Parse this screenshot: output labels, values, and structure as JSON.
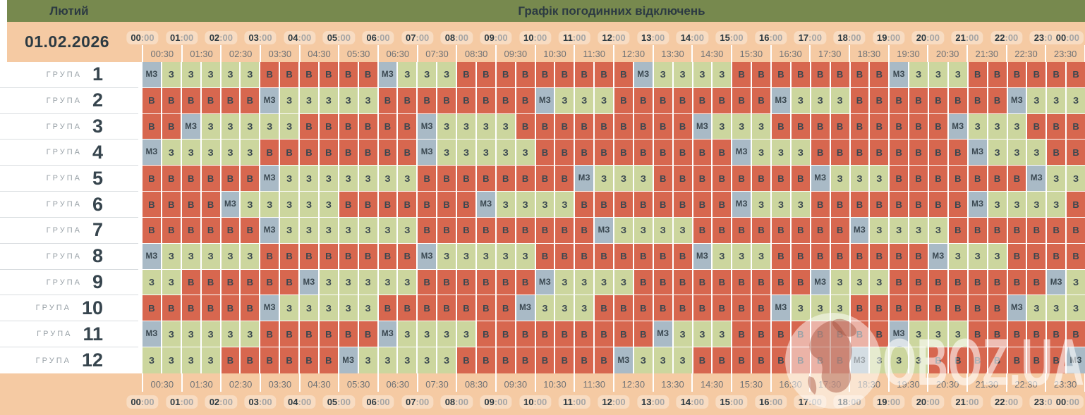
{
  "header": {
    "month": "Лютий",
    "title": "Графік погодинних відключень"
  },
  "sidebar": {
    "date": "01.02.2026",
    "group_label": "ГРУПА",
    "group_numbers": [
      "1",
      "2",
      "3",
      "4",
      "5",
      "6",
      "7",
      "8",
      "9",
      "10",
      "11",
      "12"
    ]
  },
  "time_axis": {
    "hours": [
      "00:00",
      "01:00",
      "02:00",
      "03:00",
      "04:00",
      "05:00",
      "06:00",
      "07:00",
      "08:00",
      "09:00",
      "10:00",
      "11:00",
      "12:00",
      "13:00",
      "14:00",
      "15:00",
      "16:00",
      "17:00",
      "18:00",
      "19:00",
      "20:00",
      "21:00",
      "22:00",
      "23:00",
      "00:00"
    ],
    "half_hours": [
      "00:30",
      "01:30",
      "02:30",
      "03:30",
      "04:30",
      "05:30",
      "06:30",
      "07:30",
      "08:30",
      "09:30",
      "10:30",
      "11:30",
      "12:30",
      "13:30",
      "14:30",
      "15:30",
      "16:30",
      "17:30",
      "18:30",
      "19:30",
      "20:30",
      "21:30",
      "22:30",
      "23:30"
    ]
  },
  "legend_colors": {
    "В": "#d7674f",
    "З": "#ccd69e",
    "МЗ": "#a9bac6"
  },
  "watermark": {
    "text": "OBOZ.UA"
  },
  "chart_data": {
    "type": "heatmap",
    "title": "Графік погодинних відключень",
    "month": "Лютий",
    "date": "01.02.2026",
    "x_slots": [
      "00:00",
      "00:30",
      "01:00",
      "01:30",
      "02:00",
      "02:30",
      "03:00",
      "03:30",
      "04:00",
      "04:30",
      "05:00",
      "05:30",
      "06:00",
      "06:30",
      "07:00",
      "07:30",
      "08:00",
      "08:30",
      "09:00",
      "09:30",
      "10:00",
      "10:30",
      "11:00",
      "11:30",
      "12:00",
      "12:30",
      "13:00",
      "13:30",
      "14:00",
      "14:30",
      "15:00",
      "15:30",
      "16:00",
      "16:30",
      "17:00",
      "17:30",
      "18:00",
      "18:30",
      "19:00",
      "19:30",
      "20:00",
      "20:30",
      "21:00",
      "21:30",
      "22:00",
      "22:30",
      "23:00",
      "23:30"
    ],
    "y_groups": [
      "1",
      "2",
      "3",
      "4",
      "5",
      "6",
      "7",
      "8",
      "9",
      "10",
      "11",
      "12"
    ],
    "cell_values": [
      "В",
      "З",
      "МЗ"
    ],
    "matrix": [
      [
        "МЗ",
        "З",
        "З",
        "З",
        "З",
        "З",
        "В",
        "В",
        "В",
        "В",
        "В",
        "В",
        "МЗ",
        "З",
        "З",
        "З",
        "В",
        "В",
        "В",
        "В",
        "В",
        "В",
        "В",
        "В",
        "В",
        "МЗ",
        "З",
        "З",
        "З",
        "З",
        "В",
        "В",
        "В",
        "В",
        "В",
        "В",
        "В",
        "В",
        "МЗ",
        "З",
        "З",
        "З",
        "В",
        "В",
        "В",
        "В",
        "В",
        "В"
      ],
      [
        "В",
        "В",
        "В",
        "В",
        "В",
        "В",
        "МЗ",
        "З",
        "З",
        "З",
        "З",
        "З",
        "В",
        "В",
        "В",
        "В",
        "В",
        "В",
        "В",
        "В",
        "МЗ",
        "З",
        "З",
        "З",
        "В",
        "В",
        "В",
        "В",
        "В",
        "В",
        "В",
        "В",
        "МЗ",
        "З",
        "З",
        "З",
        "В",
        "В",
        "В",
        "В",
        "В",
        "В",
        "В",
        "В",
        "МЗ",
        "З",
        "З",
        "З"
      ],
      [
        "В",
        "В",
        "МЗ",
        "З",
        "З",
        "З",
        "З",
        "З",
        "В",
        "В",
        "В",
        "В",
        "В",
        "В",
        "МЗ",
        "З",
        "З",
        "З",
        "З",
        "В",
        "В",
        "В",
        "В",
        "В",
        "В",
        "В",
        "В",
        "В",
        "МЗ",
        "З",
        "З",
        "З",
        "В",
        "В",
        "В",
        "В",
        "В",
        "В",
        "В",
        "В",
        "В",
        "МЗ",
        "З",
        "З",
        "З",
        "В",
        "В",
        "В"
      ],
      [
        "МЗ",
        "З",
        "З",
        "З",
        "З",
        "З",
        "В",
        "В",
        "В",
        "В",
        "В",
        "В",
        "В",
        "В",
        "МЗ",
        "З",
        "З",
        "З",
        "З",
        "З",
        "В",
        "В",
        "В",
        "В",
        "В",
        "В",
        "В",
        "В",
        "В",
        "В",
        "МЗ",
        "З",
        "З",
        "З",
        "В",
        "В",
        "В",
        "В",
        "В",
        "В",
        "В",
        "В",
        "МЗ",
        "З",
        "З",
        "З",
        "В",
        "В"
      ],
      [
        "В",
        "В",
        "В",
        "В",
        "В",
        "В",
        "МЗ",
        "З",
        "З",
        "З",
        "З",
        "З",
        "З",
        "З",
        "В",
        "В",
        "В",
        "В",
        "В",
        "В",
        "В",
        "В",
        "МЗ",
        "З",
        "З",
        "З",
        "В",
        "В",
        "В",
        "В",
        "В",
        "В",
        "В",
        "В",
        "МЗ",
        "З",
        "З",
        "З",
        "В",
        "В",
        "В",
        "В",
        "В",
        "В",
        "В",
        "МЗ",
        "З",
        "З"
      ],
      [
        "В",
        "В",
        "В",
        "В",
        "МЗ",
        "З",
        "З",
        "З",
        "З",
        "З",
        "В",
        "В",
        "В",
        "В",
        "В",
        "В",
        "В",
        "МЗ",
        "З",
        "З",
        "З",
        "З",
        "В",
        "В",
        "В",
        "В",
        "В",
        "В",
        "В",
        "В",
        "МЗ",
        "З",
        "З",
        "З",
        "В",
        "В",
        "В",
        "В",
        "В",
        "В",
        "В",
        "В",
        "МЗ",
        "З",
        "З",
        "З",
        "З",
        "В"
      ],
      [
        "В",
        "В",
        "В",
        "В",
        "В",
        "В",
        "МЗ",
        "З",
        "З",
        "З",
        "З",
        "З",
        "З",
        "З",
        "В",
        "В",
        "В",
        "В",
        "В",
        "В",
        "В",
        "В",
        "В",
        "МЗ",
        "З",
        "З",
        "З",
        "З",
        "В",
        "В",
        "В",
        "В",
        "В",
        "В",
        "В",
        "В",
        "МЗ",
        "З",
        "З",
        "З",
        "З",
        "В",
        "В",
        "В",
        "В",
        "В",
        "В",
        "В"
      ],
      [
        "МЗ",
        "З",
        "З",
        "З",
        "З",
        "З",
        "В",
        "В",
        "В",
        "В",
        "В",
        "В",
        "В",
        "В",
        "МЗ",
        "З",
        "З",
        "З",
        "З",
        "З",
        "В",
        "В",
        "В",
        "В",
        "В",
        "В",
        "В",
        "В",
        "МЗ",
        "З",
        "З",
        "З",
        "В",
        "В",
        "В",
        "В",
        "В",
        "В",
        "В",
        "В",
        "МЗ",
        "З",
        "З",
        "З",
        "В",
        "В",
        "В",
        "В"
      ],
      [
        "З",
        "З",
        "В",
        "В",
        "В",
        "В",
        "В",
        "В",
        "МЗ",
        "З",
        "З",
        "З",
        "З",
        "З",
        "В",
        "В",
        "В",
        "В",
        "В",
        "В",
        "МЗ",
        "З",
        "З",
        "З",
        "З",
        "В",
        "В",
        "В",
        "В",
        "В",
        "В",
        "В",
        "В",
        "В",
        "МЗ",
        "З",
        "З",
        "З",
        "В",
        "В",
        "В",
        "В",
        "В",
        "В",
        "В",
        "В",
        "МЗ",
        "З"
      ],
      [
        "В",
        "В",
        "В",
        "В",
        "В",
        "В",
        "МЗ",
        "З",
        "З",
        "З",
        "З",
        "З",
        "В",
        "В",
        "В",
        "В",
        "В",
        "В",
        "В",
        "МЗ",
        "З",
        "З",
        "З",
        "В",
        "В",
        "В",
        "В",
        "В",
        "В",
        "В",
        "В",
        "В",
        "МЗ",
        "З",
        "З",
        "З",
        "В",
        "В",
        "В",
        "В",
        "В",
        "В",
        "В",
        "В",
        "МЗ",
        "З",
        "З",
        "З"
      ],
      [
        "МЗ",
        "З",
        "З",
        "З",
        "З",
        "З",
        "В",
        "В",
        "В",
        "В",
        "В",
        "В",
        "МЗ",
        "З",
        "З",
        "З",
        "З",
        "В",
        "В",
        "В",
        "В",
        "В",
        "В",
        "В",
        "В",
        "В",
        "МЗ",
        "З",
        "З",
        "З",
        "В",
        "В",
        "В",
        "В",
        "В",
        "В",
        "В",
        "В",
        "МЗ",
        "З",
        "З",
        "З",
        "В",
        "В",
        "В",
        "В",
        "В",
        "В"
      ],
      [
        "З",
        "З",
        "З",
        "З",
        "В",
        "В",
        "В",
        "В",
        "В",
        "В",
        "МЗ",
        "З",
        "З",
        "З",
        "З",
        "З",
        "В",
        "В",
        "В",
        "В",
        "В",
        "В",
        "В",
        "В",
        "МЗ",
        "З",
        "З",
        "З",
        "В",
        "В",
        "В",
        "В",
        "В",
        "В",
        "В",
        "В",
        "МЗ",
        "З",
        "З",
        "З",
        "В",
        "В",
        "В",
        "В",
        "В",
        "В",
        "В",
        "МЗ"
      ]
    ]
  }
}
